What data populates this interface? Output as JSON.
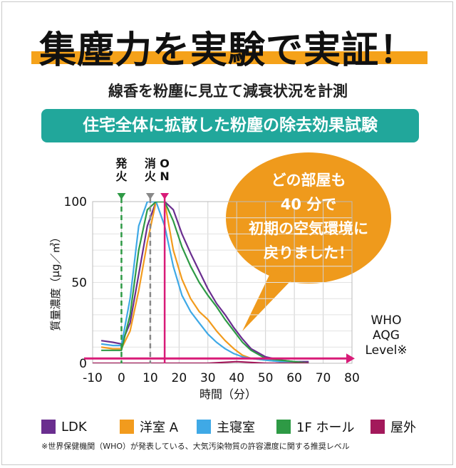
{
  "header": {
    "title": "集塵力を実験で実証！",
    "subtitle": "線香を粉塵に見立て減衰状況を計測",
    "banner": "住宅全体に拡散した粉塵の除去効果試験"
  },
  "callout": {
    "lines": [
      "どの部屋も",
      "40 分で",
      "初期の空気環境に",
      "戻りました！"
    ]
  },
  "colors": {
    "title_highlight": "#f5a21a",
    "banner": "#21a79b",
    "callout": "#ef9a1c",
    "who_line": "#d81b78",
    "LDK": "#6a2e8f",
    "洋室A": "#f29b1d",
    "主寝室": "#3fa9e6",
    "1Fホール": "#2e9a45",
    "屋外": "#a3195b"
  },
  "chart_data": {
    "type": "line",
    "xlabel": "時間（分）",
    "ylabel": "質量濃度（μg／㎥）",
    "xlim": [
      -10,
      80
    ],
    "ylim": [
      0,
      100
    ],
    "xticks": [
      -10,
      0,
      10,
      20,
      30,
      40,
      50,
      60,
      70,
      80
    ],
    "yticks": [
      0,
      50,
      100
    ],
    "grid": true,
    "legend_position": "bottom",
    "events": [
      {
        "label": "発火",
        "x": 0,
        "style": "dashed",
        "color": "#2e9a45"
      },
      {
        "label": "消火",
        "x": 10,
        "style": "dashed",
        "color": "#888888"
      },
      {
        "label": "ON",
        "x": 15,
        "style": "solid",
        "color": "#d81b78"
      }
    ],
    "reference": {
      "label_lines": [
        "WHO",
        "AQG",
        "Level※"
      ],
      "y": 3,
      "color": "#d81b78"
    },
    "series": [
      {
        "name": "LDK",
        "color": "#6a2e8f",
        "x": [
          -7,
          -3,
          0,
          3,
          6,
          9,
          12,
          15,
          18,
          21,
          24,
          27,
          30,
          33,
          36,
          39,
          42,
          45,
          50,
          55,
          60,
          65
        ],
        "y": [
          14,
          13,
          12,
          25,
          55,
          85,
          100,
          100,
          95,
          80,
          68,
          57,
          46,
          37,
          30,
          22,
          15,
          9,
          4,
          2,
          1,
          1
        ]
      },
      {
        "name": "洋室 A",
        "color": "#f29b1d",
        "x": [
          -7,
          -3,
          0,
          3,
          6,
          9,
          12,
          15,
          18,
          21,
          24,
          27,
          30,
          33,
          36,
          39,
          42,
          45,
          50,
          55,
          60,
          65
        ],
        "y": [
          10,
          9,
          9,
          20,
          45,
          75,
          100,
          100,
          70,
          52,
          40,
          32,
          27,
          20,
          14,
          9,
          5,
          3,
          2,
          1,
          1,
          0
        ]
      },
      {
        "name": "主寝室",
        "color": "#3fa9e6",
        "x": [
          -7,
          -3,
          0,
          3,
          6,
          9,
          12,
          15,
          18,
          21,
          24,
          27,
          30,
          33,
          36,
          39,
          42,
          45,
          50,
          55,
          60,
          65
        ],
        "y": [
          12,
          11,
          11,
          40,
          85,
          100,
          100,
          85,
          60,
          42,
          32,
          25,
          18,
          13,
          9,
          6,
          4,
          3,
          2,
          1,
          1,
          0
        ]
      },
      {
        "name": "1F ホール",
        "color": "#2e9a45",
        "x": [
          -7,
          -3,
          0,
          3,
          6,
          9,
          12,
          15,
          18,
          21,
          24,
          27,
          30,
          33,
          36,
          39,
          42,
          45,
          50,
          55,
          60,
          65
        ],
        "y": [
          8,
          8,
          8,
          30,
          70,
          95,
          100,
          100,
          88,
          72,
          60,
          50,
          42,
          35,
          27,
          20,
          13,
          8,
          3,
          2,
          1,
          0
        ]
      },
      {
        "name": "屋外",
        "color": "#a3195b",
        "x": [
          -10,
          0,
          10,
          20,
          30,
          40,
          50,
          60,
          65
        ],
        "y": [
          0,
          0,
          0,
          0,
          0,
          1,
          0,
          0,
          0
        ]
      }
    ]
  },
  "legend": [
    {
      "label": "LDK",
      "color": "#6a2e8f"
    },
    {
      "label": "洋室 A",
      "color": "#f29b1d"
    },
    {
      "label": "主寝室",
      "color": "#3fa9e6"
    },
    {
      "label": "1F ホール",
      "color": "#2e9a45"
    },
    {
      "label": "屋外",
      "color": "#a3195b"
    }
  ],
  "footnote": "※世界保健機関（WHO）が発表している、大気汚染物質の許容濃度に関する推奨レベル"
}
